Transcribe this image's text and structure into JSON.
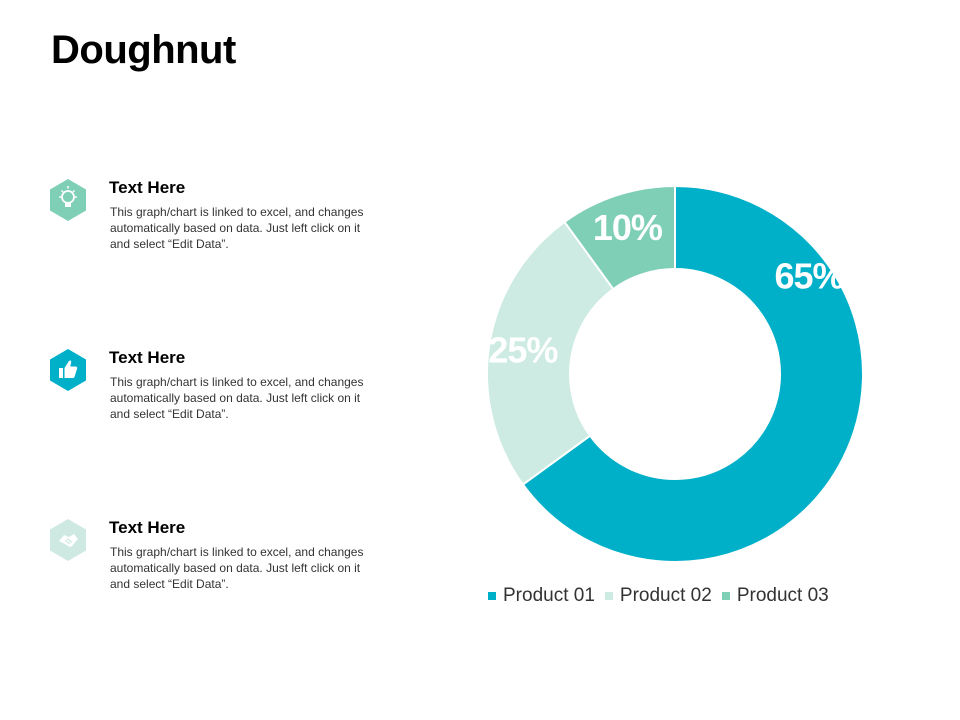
{
  "page": {
    "title": "Doughnut"
  },
  "info_items": [
    {
      "heading": "Text Here",
      "body": "This graph/chart is linked to excel, and changes automatically based on data. Just left click on it and select “Edit Data”.",
      "icon": "lightbulb-icon",
      "icon_color": "#7ecfb6"
    },
    {
      "heading": "Text Here",
      "body": "This graph/chart is linked to excel, and changes automatically based on data. Just left click on it and select “Edit Data”.",
      "icon": "thumbs-up-icon",
      "icon_color": "#00afc8"
    },
    {
      "heading": "Text Here",
      "body": "This graph/chart is linked to excel, and changes automatically based on data. Just left click on it and select “Edit Data”.",
      "icon": "handshake-icon",
      "icon_color": "#cde9e1"
    }
  ],
  "chart_data": {
    "type": "doughnut",
    "title": "",
    "categories": [
      "Product 01",
      "Product 02",
      "Product 03"
    ],
    "values": [
      65,
      25,
      10
    ],
    "labels": [
      "65%",
      "25%",
      "10%"
    ],
    "colors": [
      "#00afc8",
      "#cdebe2",
      "#7ecfb6"
    ],
    "legend": "bottom"
  }
}
